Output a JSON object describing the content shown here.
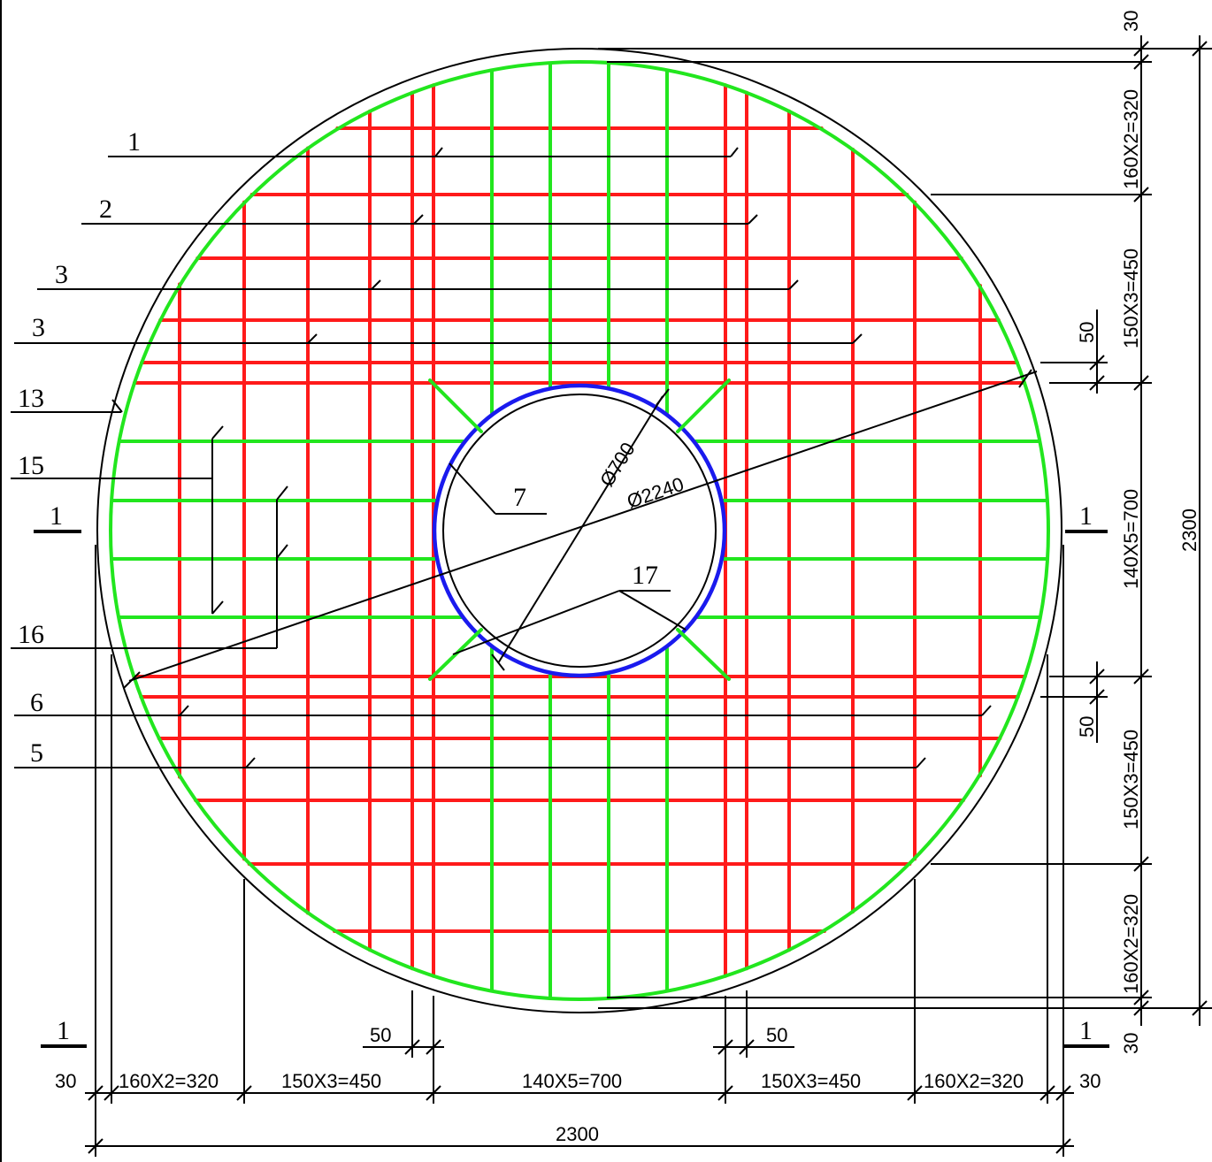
{
  "callouts": {
    "c1": "1",
    "c2": "2",
    "c3a": "3",
    "c3b": "3",
    "c13": "13",
    "c15": "15",
    "c16": "16",
    "c6": "6",
    "c5": "5",
    "c7": "7",
    "c17": "17"
  },
  "section_marks": {
    "left_mid": "1",
    "right_mid": "1",
    "left_bottom": "1",
    "right_bottom": "1"
  },
  "diameters": {
    "inner": "Ø700",
    "outer": "Ø2240"
  },
  "dims_bottom": {
    "d1": "30",
    "d2": "160X2=320",
    "d3": "150X3=450",
    "d4": "140X5=700",
    "d5": "150X3=450",
    "d6": "160X2=320",
    "d7": "30",
    "total": "2300",
    "gap_left": "50",
    "gap_right": "50"
  },
  "dims_right": {
    "top30": "30",
    "d1": "160X2=320",
    "d2": "150X3=450",
    "d3": "140X5=700",
    "d4": "150X3=450",
    "d5": "160X2=320",
    "bot30": "30",
    "total": "2300",
    "gap_top": "50",
    "gap_bottom": "50"
  },
  "colors": {
    "bar_red": "#ff1a1a",
    "bar_green": "#22e61e",
    "ring_blue": "#1a1aee",
    "line": "#000000"
  }
}
